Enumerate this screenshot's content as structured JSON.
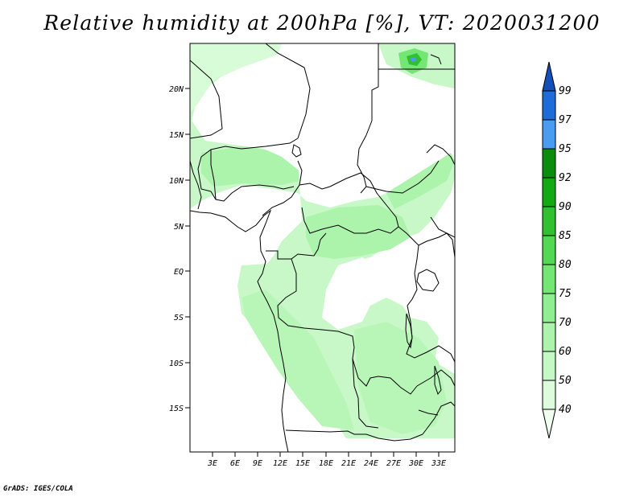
{
  "title": "Relative humidity at 200hPa [%], VT: 2020031200",
  "footer": "GrADS: IGES/COLA",
  "map": {
    "lat_labels": [
      "20N",
      "15N",
      "10N",
      "5N",
      "EQ",
      "5S",
      "10S",
      "15S"
    ],
    "lon_labels": [
      "3E",
      "6E",
      "9E",
      "12E",
      "15E",
      "18E",
      "21E",
      "24E",
      "27E",
      "30E",
      "33E"
    ]
  },
  "colorbar": {
    "levels": [
      "40",
      "50",
      "60",
      "70",
      "75",
      "80",
      "85",
      "90",
      "92",
      "95",
      "97",
      "99"
    ],
    "colors": [
      "#f0fef0",
      "#dcfcdc",
      "#c4f8c4",
      "#acf4ac",
      "#90ee90",
      "#74e674",
      "#52d852",
      "#30c030",
      "#14a814",
      "#0c8c0c",
      "#4a9cf0",
      "#1e6cd8",
      "#1450b8"
    ]
  }
}
